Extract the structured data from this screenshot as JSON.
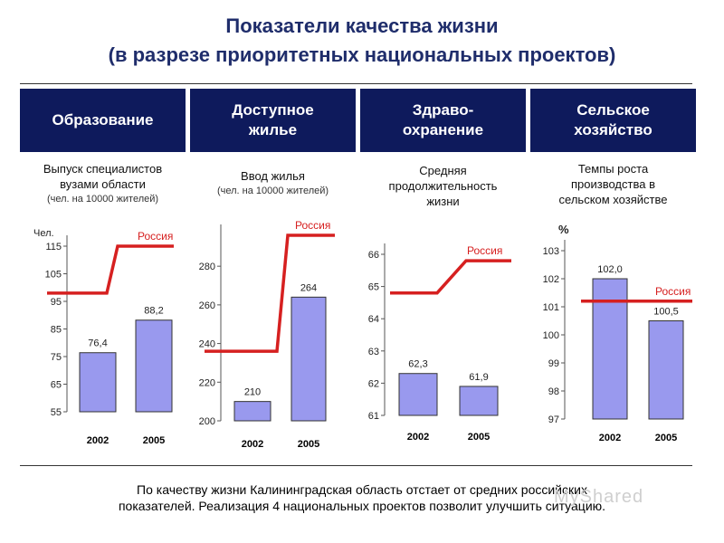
{
  "title_line1": "Показатели качества жизни",
  "title_line2": "(в разрезе приоритетных национальных проектов)",
  "tabs": [
    {
      "label": "Образование"
    },
    {
      "label": "Доступное\nжилье"
    },
    {
      "label": "Здраво-\nохранение"
    },
    {
      "label": "Сельское\nхозяйство"
    }
  ],
  "subtitles": [
    {
      "main": "Выпуск специалистов\nвузами области",
      "small": "(чел. на 10000 жителей)"
    },
    {
      "main": "Ввод жилья",
      "small": "(чел. на 10000 жителей)"
    },
    {
      "main": "Средняя\nпродолжительность\nжизни",
      "small": ""
    },
    {
      "main": "Темпы роста\nпроизводства в\nсельском хозяйстве",
      "small": ""
    }
  ],
  "footer": "По качеству жизни Калининградская область отстает от средних российских\nпоказателей. Реализация 4 национальных проектов позволит улучшить ситуацию.",
  "watermark": "MyShared",
  "colors": {
    "bar_fill": "#9999ee",
    "bar_stroke": "#333333",
    "russia_line": "#d62020",
    "header_bg": "#0e1a5c",
    "title": "#1f2d6b"
  },
  "chart_data": [
    {
      "type": "bar",
      "ylabel": "Чел.",
      "ylim": [
        55,
        115
      ],
      "yticks": [
        55,
        65,
        75,
        85,
        95,
        105,
        115
      ],
      "categories": [
        "2002",
        "2005"
      ],
      "values": [
        76.4,
        88.2
      ],
      "value_labels": [
        "76,4",
        "88,2"
      ],
      "reference": {
        "name": "Россия",
        "values": [
          98,
          115
        ]
      }
    },
    {
      "type": "bar",
      "ylabel": "",
      "ylim": [
        200,
        296
      ],
      "yticks": [
        200,
        220,
        240,
        260,
        280
      ],
      "categories": [
        "2002",
        "2005"
      ],
      "values": [
        210,
        264
      ],
      "value_labels": [
        "210",
        "264"
      ],
      "reference": {
        "name": "Россия",
        "values": [
          236,
          296
        ]
      }
    },
    {
      "type": "bar",
      "ylabel": "",
      "ylim": [
        61,
        66
      ],
      "yticks": [
        61,
        62,
        63,
        64,
        65,
        66
      ],
      "categories": [
        "2002",
        "2005"
      ],
      "values": [
        62.3,
        61.9
      ],
      "value_labels": [
        "62,3",
        "61,9"
      ],
      "reference": {
        "name": "Россия",
        "values": [
          64.8,
          65.8
        ]
      }
    },
    {
      "type": "bar",
      "ylabel": "%",
      "ylim": [
        97,
        103
      ],
      "yticks": [
        97,
        98,
        99,
        100,
        101,
        102,
        103
      ],
      "categories": [
        "2002",
        "2005"
      ],
      "values": [
        102.0,
        100.5
      ],
      "value_labels": [
        "102,0",
        "100,5"
      ],
      "reference": {
        "name": "Россия",
        "values": [
          101.2,
          101.2
        ]
      }
    }
  ]
}
